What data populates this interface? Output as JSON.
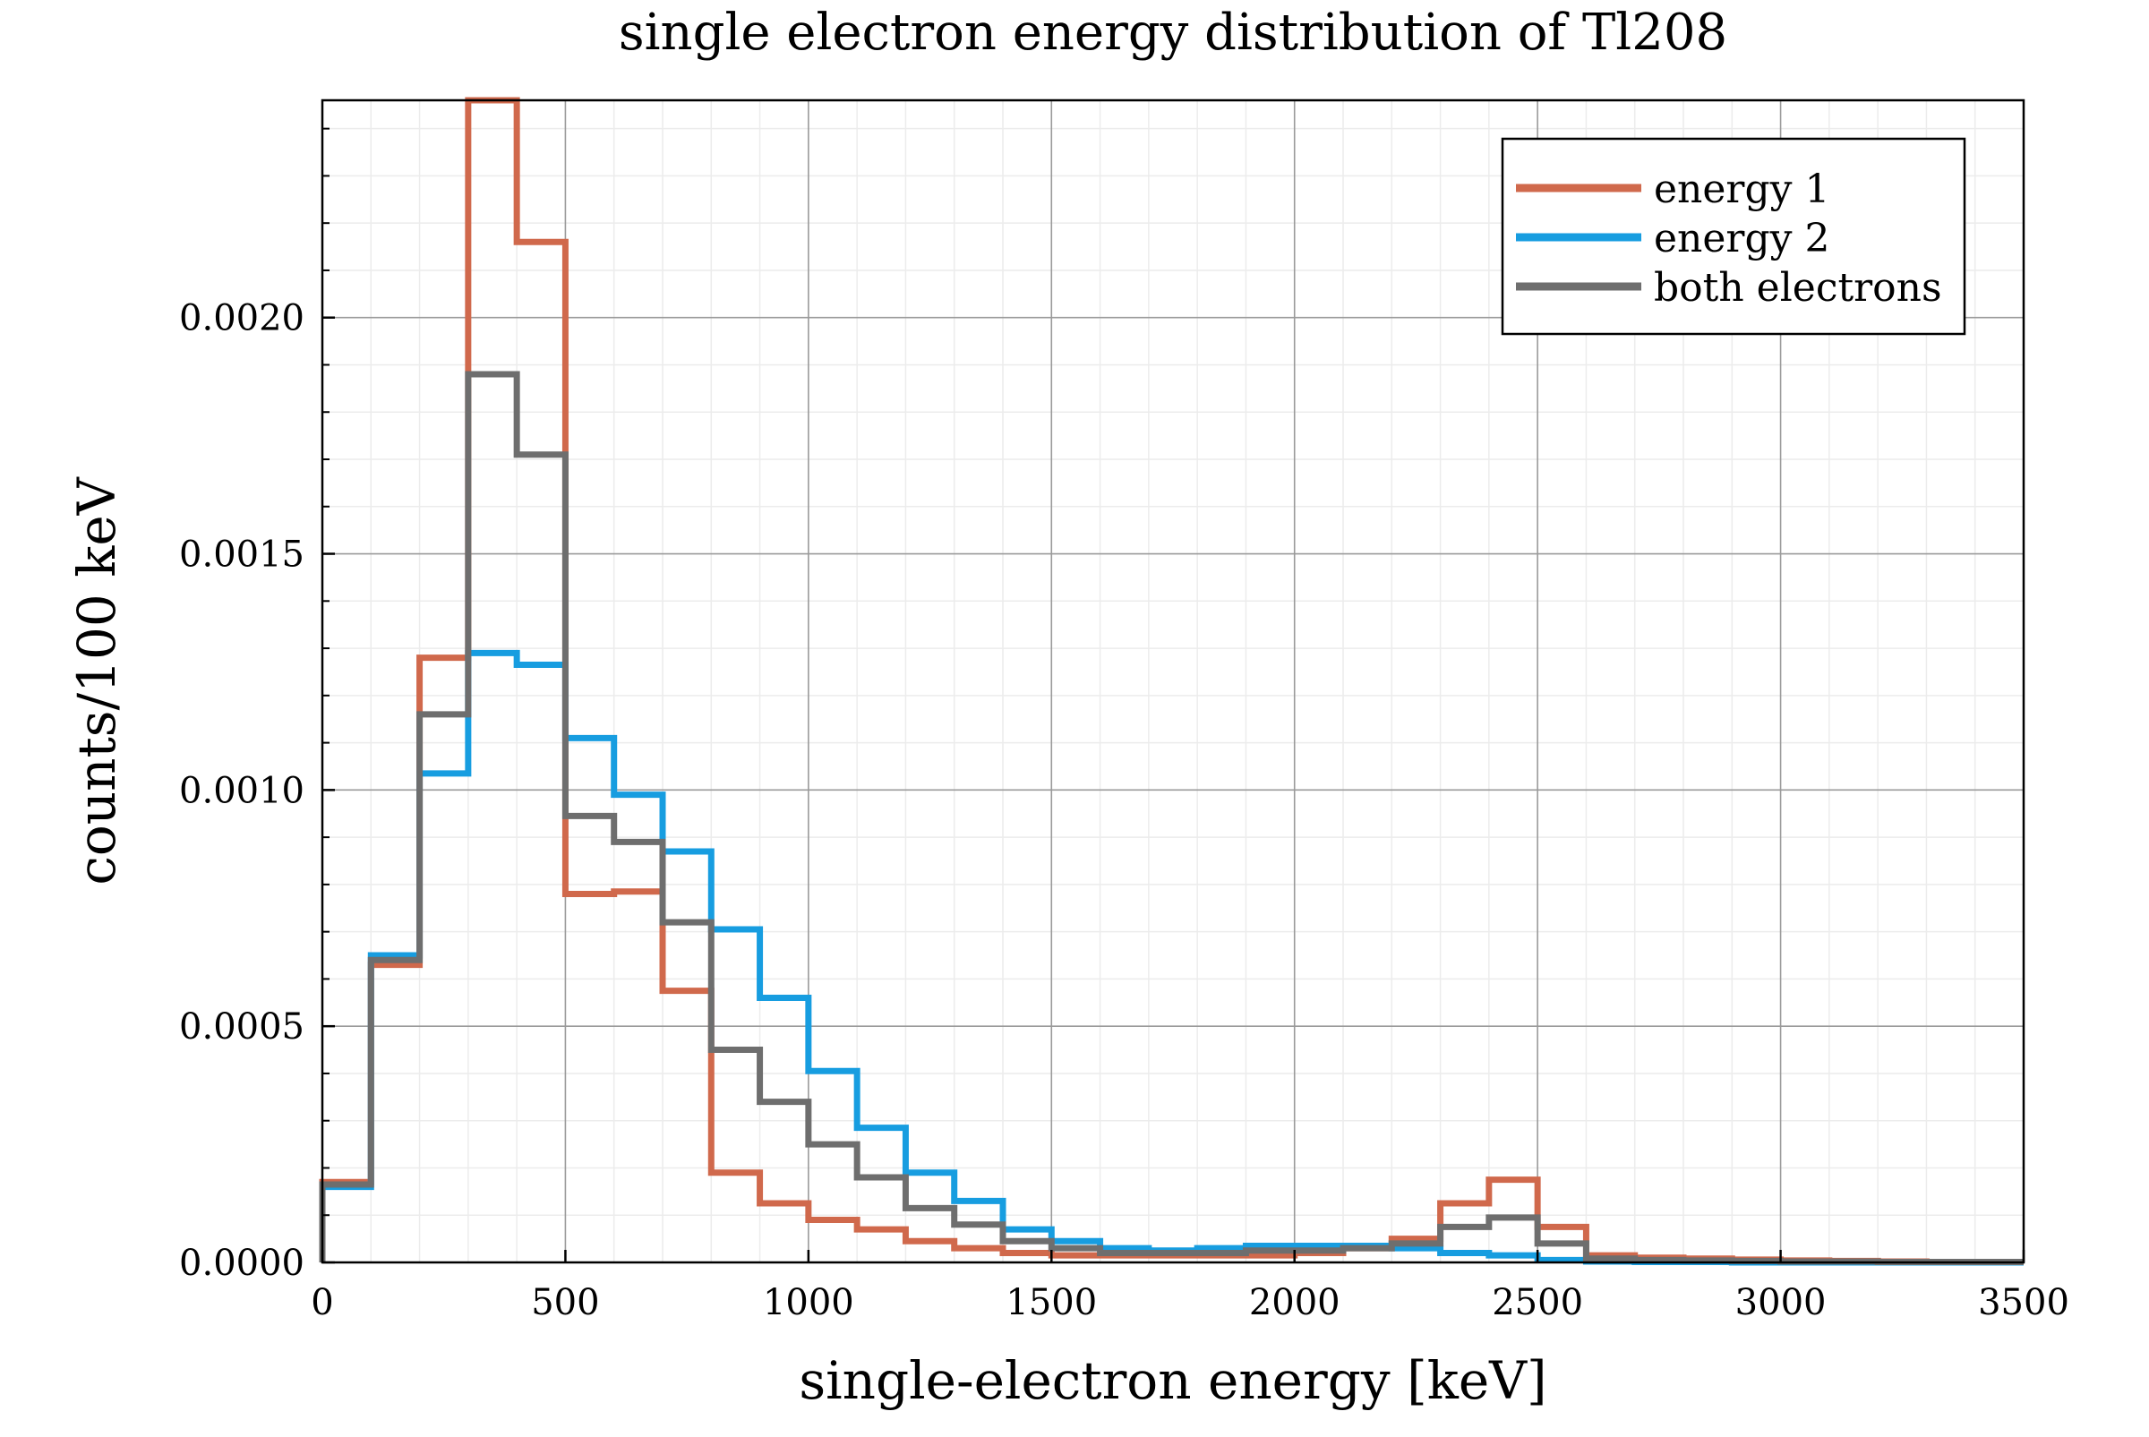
{
  "chart_data": {
    "type": "line",
    "title": "single electron energy distribution of Tl208",
    "xlabel": "single-electron energy [keV]",
    "ylabel": "counts/100 keV",
    "xlim": [
      0,
      3500
    ],
    "ylim": [
      0,
      0.00246
    ],
    "xticks": [
      0,
      500,
      1000,
      1500,
      2000,
      2500,
      3000,
      3500
    ],
    "xtick_labels": [
      "0",
      "500",
      "1000",
      "1500",
      "2000",
      "2500",
      "3000",
      "3500"
    ],
    "yticks": [
      0,
      0.0005,
      0.001,
      0.0015,
      0.002
    ],
    "ytick_labels": [
      "0.0000",
      "0.0005",
      "0.0010",
      "0.0015",
      "0.0020"
    ],
    "grid": true,
    "legend_position": "top-right",
    "bin_edges": [
      0,
      100,
      200,
      300,
      400,
      500,
      600,
      700,
      800,
      900,
      1000,
      1100,
      1200,
      1300,
      1400,
      1500,
      1600,
      1700,
      1800,
      1900,
      2000,
      2100,
      2200,
      2300,
      2400,
      2500,
      2600,
      2700,
      2800,
      2900,
      3000,
      3100,
      3200,
      3300,
      3400,
      3500
    ],
    "series": [
      {
        "name": "energy 1",
        "color": "#d0694c",
        "values": [
          0.00017,
          0.00063,
          0.00128,
          0.00246,
          0.00216,
          0.00078,
          0.000785,
          0.000575,
          0.00019,
          0.000125,
          9e-05,
          7e-05,
          4.5e-05,
          3e-05,
          2e-05,
          1.5e-05,
          1.5e-05,
          1.5e-05,
          1.5e-05,
          1.5e-05,
          2e-05,
          3e-05,
          5e-05,
          0.000125,
          0.000175,
          7.5e-05,
          1.5e-05,
          1e-05,
          8e-06,
          6e-06,
          4e-06,
          3e-06,
          2e-06,
          1e-06,
          1e-06
        ]
      },
      {
        "name": "energy 2",
        "color": "#179de0",
        "values": [
          0.00016,
          0.00065,
          0.001035,
          0.00129,
          0.001265,
          0.00111,
          0.00099,
          0.00087,
          0.000705,
          0.00056,
          0.000405,
          0.000285,
          0.00019,
          0.00013,
          7e-05,
          4.5e-05,
          3e-05,
          2.5e-05,
          3e-05,
          3.5e-05,
          3.5e-05,
          3.5e-05,
          3e-05,
          2e-05,
          1.5e-05,
          5e-06,
          2e-06,
          1e-06,
          1e-06,
          0.0,
          0.0,
          0.0,
          0.0,
          0.0,
          0.0
        ]
      },
      {
        "name": "both electrons",
        "color": "#6e6e6e",
        "values": [
          0.000165,
          0.00064,
          0.00116,
          0.00188,
          0.00171,
          0.000945,
          0.00089,
          0.00072,
          0.00045,
          0.00034,
          0.00025,
          0.00018,
          0.000115,
          8e-05,
          4.5e-05,
          3e-05,
          2e-05,
          2e-05,
          2e-05,
          2.5e-05,
          2.5e-05,
          3e-05,
          4e-05,
          7.5e-05,
          9.5e-05,
          4e-05,
          8e-06,
          5e-06,
          4e-06,
          3e-06,
          2e-06,
          2e-06,
          1e-06,
          1e-06,
          1e-06
        ]
      }
    ]
  }
}
